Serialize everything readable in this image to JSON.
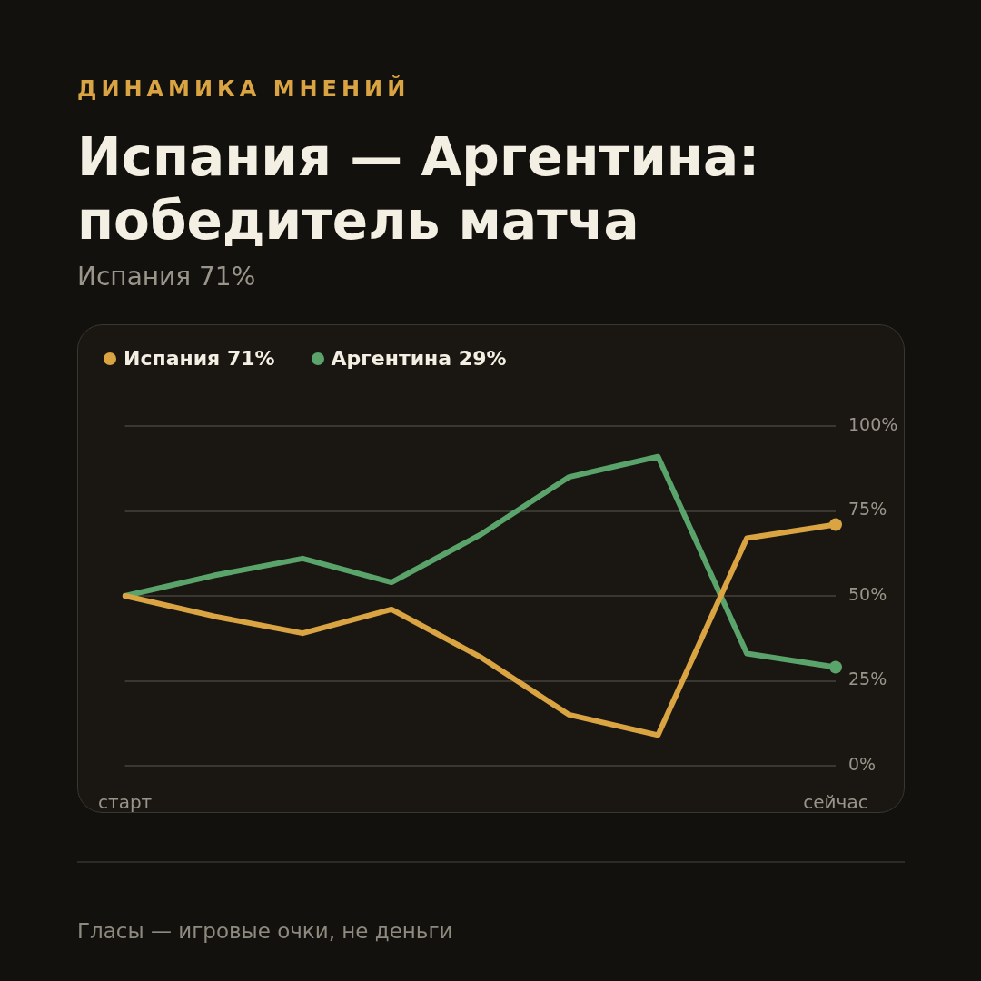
{
  "chart_data": {
    "type": "line",
    "title": "Испания — Аргентина: победитель матча",
    "subtitle": "Испания 71%",
    "annotations": [
      "ДИНАМИКА МНЕНИЙ",
      "Гласы — игровые очки, не деньги"
    ],
    "categories": [
      "старт",
      null,
      null,
      null,
      null,
      null,
      null,
      null,
      "сейчас"
    ],
    "series": [
      {
        "name": "Испания 71%",
        "color": "#d9a441",
        "values": [
          50,
          44,
          39,
          46,
          32,
          15,
          9,
          67,
          71
        ]
      },
      {
        "name": "Аргентина 29%",
        "color": "#5aa46c",
        "values": [
          50,
          56,
          61,
          54,
          68,
          85,
          91,
          33,
          29
        ]
      },
      {
        "type": "scatter",
        "color": "#d9a441",
        "x": [
          "сейчас"
        ],
        "values": [
          71
        ],
        "marker": "circle"
      },
      {
        "type": "scatter",
        "color": "#5aa46c",
        "x": [
          "сейчас"
        ],
        "values": [
          29
        ],
        "marker": "circle"
      }
    ],
    "ylim": [
      0,
      100
    ],
    "yticks": [
      {
        "value": 0,
        "label": "0%"
      },
      {
        "value": 25,
        "label": "25%"
      },
      {
        "value": 50,
        "label": "50%"
      },
      {
        "value": 75,
        "label": "75%"
      },
      {
        "value": 100,
        "label": "100%"
      }
    ],
    "grid": "y",
    "legend": "top left",
    "marker": "none",
    "line_style": "solid"
  }
}
